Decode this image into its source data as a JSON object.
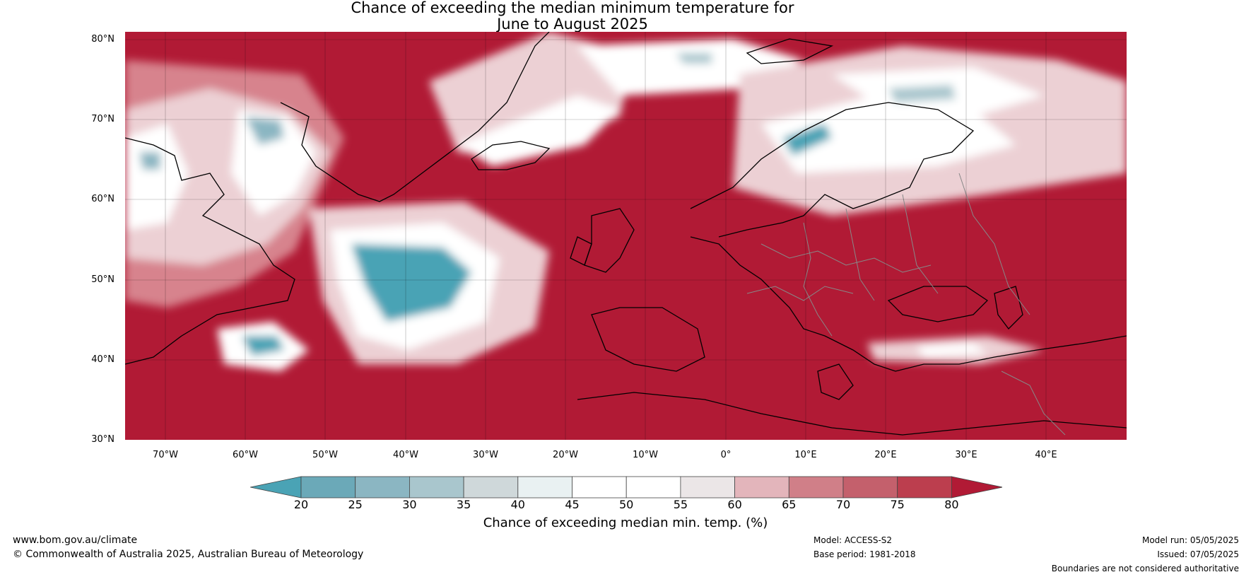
{
  "header": {
    "title_line1": "Chance of exceeding the median minimum temperature for",
    "title_line2": "June to August 2025"
  },
  "map": {
    "lat_labels": [
      "80°N",
      "70°N",
      "60°N",
      "50°N",
      "40°N",
      "30°N"
    ],
    "lon_labels": [
      "70°W",
      "60°W",
      "50°W",
      "40°W",
      "30°W",
      "20°W",
      "10°W",
      "0°",
      "10°E",
      "20°E",
      "30°E",
      "40°E"
    ],
    "colors": {
      "ocean_high": "#b11a35",
      "white": "#ffffff",
      "blue_low": "#4aa3b5"
    }
  },
  "colorbar": {
    "ticks": [
      "20",
      "25",
      "30",
      "35",
      "40",
      "45",
      "50",
      "55",
      "60",
      "65",
      "70",
      "75",
      "80"
    ],
    "segment_colors": [
      "#4aa3b5",
      "#6ba9b8",
      "#8bb6c2",
      "#a9c6cd",
      "#cfd8da",
      "#e9f1f2",
      "#ffffff",
      "#ffffff",
      "#ebe6e7",
      "#e3b5bb",
      "#d07f88",
      "#c4606c",
      "#bc3e4e",
      "#b11a35"
    ],
    "label": "Chance of exceeding median min. temp. (%)"
  },
  "footer": {
    "url": "www.bom.gov.au/climate",
    "copyright": "© Commonwealth of Australia 2025, Australian Bureau of Meteorology",
    "model": "Model: ACCESS-S2",
    "base_period": "Base period: 1981-2018",
    "model_run": "Model run: 05/05/2025",
    "issued": "Issued: 07/05/2025",
    "boundaries": "Boundaries are not considered authoritative"
  }
}
